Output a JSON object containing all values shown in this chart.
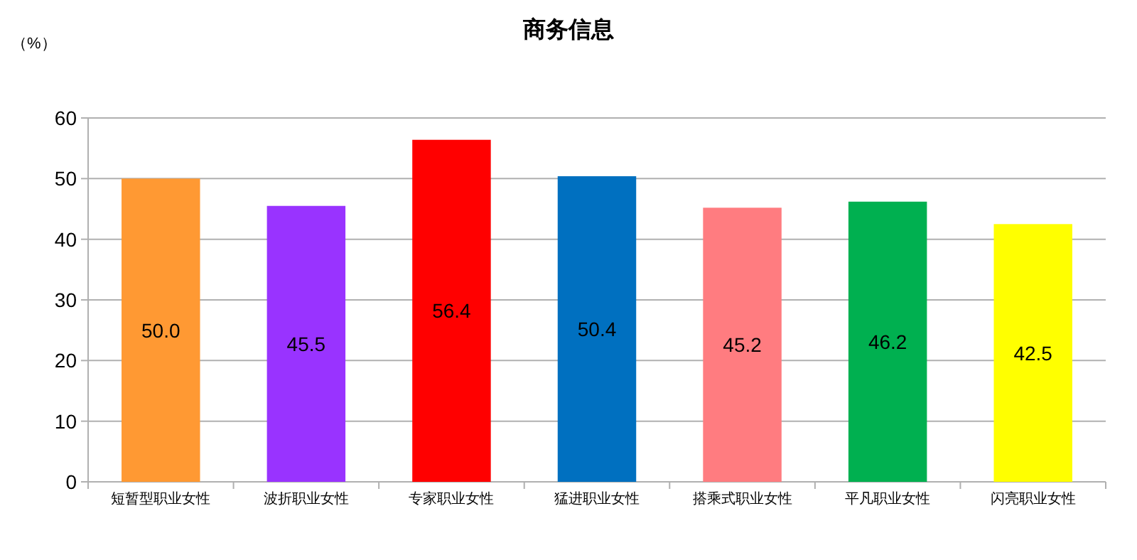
{
  "chart_data": {
    "type": "bar",
    "title": "商务信息",
    "ylabel": "（%）",
    "categories": [
      "短暂型职业女性",
      "波折职业女性",
      "专家职业女性",
      "猛进职业女性",
      "搭乘式职业女性",
      "平凡职业女性",
      "闪亮职业女性"
    ],
    "values": [
      50.0,
      45.5,
      56.4,
      50.4,
      45.2,
      46.2,
      42.5
    ],
    "colors": [
      "#ff9933",
      "#9933ff",
      "#ff0000",
      "#0070c0",
      "#ff7c80",
      "#00b050",
      "#ffff00"
    ],
    "value_labels": [
      "50.0",
      "45.5",
      "56.4",
      "50.4",
      "45.2",
      "46.2",
      "42.5"
    ],
    "ylim": [
      0,
      60
    ],
    "yticks": [
      0,
      10,
      20,
      30,
      40,
      50,
      60
    ],
    "grid": "y"
  }
}
